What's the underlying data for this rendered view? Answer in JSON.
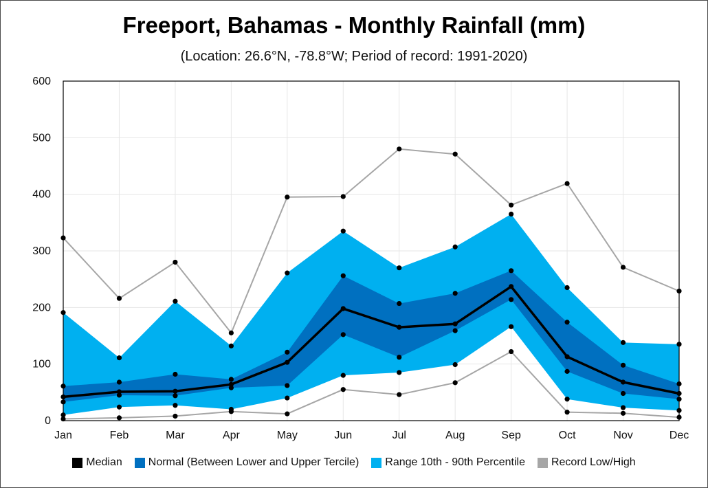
{
  "chart_data": {
    "type": "area",
    "title": "Freeport, Bahamas - Monthly Rainfall (mm)",
    "subtitle": "(Location: 26.6°N, -78.8°W; Period of record: 1991-2020)",
    "categories": [
      "Jan",
      "Feb",
      "Mar",
      "Apr",
      "May",
      "Jun",
      "Jul",
      "Aug",
      "Sep",
      "Oct",
      "Nov",
      "Dec"
    ],
    "ylim": [
      0,
      600
    ],
    "yticks": [
      0,
      100,
      200,
      300,
      400,
      500,
      600
    ],
    "grid": true,
    "legend_position": "bottom",
    "series": [
      {
        "name": "Median",
        "values": [
          42,
          51,
          52,
          64,
          103,
          198,
          165,
          171,
          237,
          113,
          68,
          48
        ],
        "color": "#000000"
      },
      {
        "name": "Normal (Between Lower and Upper Tercile)",
        "lower": [
          33,
          45,
          44,
          58,
          62,
          152,
          112,
          159,
          214,
          87,
          48,
          38
        ],
        "upper": [
          61,
          68,
          82,
          73,
          121,
          256,
          207,
          225,
          265,
          174,
          98,
          65
        ],
        "color": "#0070c0"
      },
      {
        "name": "Range 10th - 90th Percentile",
        "lower": [
          10,
          24,
          27,
          20,
          40,
          80,
          85,
          99,
          166,
          38,
          23,
          18
        ],
        "upper": [
          191,
          111,
          211,
          132,
          261,
          335,
          270,
          307,
          365,
          235,
          138,
          135
        ],
        "color": "#00b0f0"
      },
      {
        "name": "Record Low/High",
        "lower": [
          3,
          5,
          8,
          16,
          12,
          55,
          46,
          67,
          122,
          15,
          13,
          6
        ],
        "upper": [
          323,
          216,
          280,
          155,
          395,
          396,
          480,
          471,
          381,
          419,
          271,
          229
        ],
        "color": "#a6a6a6"
      }
    ]
  }
}
